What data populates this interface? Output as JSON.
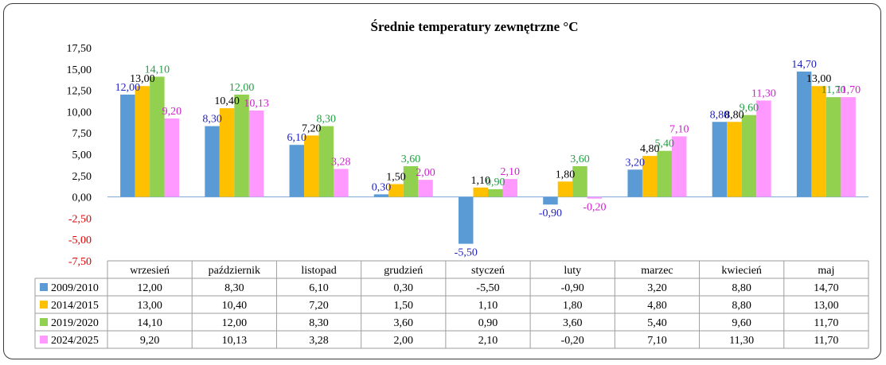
{
  "chart_data": {
    "type": "bar",
    "title": "Średnie temperatury zewnętrzne °C",
    "categories": [
      "wrzesień",
      "październik",
      "listopad",
      "grudzień",
      "styczeń",
      "luty",
      "marzec",
      "kwiecień",
      "maj"
    ],
    "ylim": [
      -7.5,
      17.5
    ],
    "yticks": [
      "17,50",
      "15,00",
      "12,50",
      "10,00",
      "7,50",
      "5,00",
      "2,50",
      "0,00",
      "-2,50",
      "-5,00",
      "-7,50"
    ],
    "ytick_values": [
      17.5,
      15,
      12.5,
      10,
      7.5,
      5,
      2.5,
      0,
      -2.5,
      -5,
      -7.5
    ],
    "grid": false,
    "legend": "data-table",
    "series": [
      {
        "name": "2009/2010",
        "color": "#5b9bd5",
        "label_color": "#1f1fbf",
        "values": [
          12.0,
          8.3,
          6.1,
          0.3,
          -5.5,
          -0.9,
          3.2,
          8.8,
          14.7
        ],
        "labels": [
          "12,00",
          "8,30",
          "6,10",
          "0,30",
          "-5,50",
          "-0,90",
          "3,20",
          "8,80",
          "14,70"
        ]
      },
      {
        "name": "2014/2015",
        "color": "#ffc000",
        "label_color": "#000000",
        "values": [
          13.0,
          10.4,
          7.2,
          1.5,
          1.1,
          1.8,
          4.8,
          8.8,
          13.0
        ],
        "labels": [
          "13,00",
          "10,40",
          "7,20",
          "1,50",
          "1,10",
          "1,80",
          "4,80",
          "8,80",
          "13,00"
        ]
      },
      {
        "name": "2019/2020",
        "color": "#92d050",
        "label_color": "#1fa040",
        "values": [
          14.1,
          12.0,
          8.3,
          3.6,
          0.9,
          3.6,
          5.4,
          9.6,
          11.7
        ],
        "labels": [
          "14,10",
          "12,00",
          "8,30",
          "3,60",
          "0,90",
          "3,60",
          "5,40",
          "9,60",
          "11,70"
        ]
      },
      {
        "name": "2024/2025",
        "color": "#ff99ff",
        "label_color": "#d020d0",
        "values": [
          9.2,
          10.13,
          3.28,
          2.0,
          2.1,
          -0.2,
          7.1,
          11.3,
          11.7
        ],
        "labels": [
          "9,20",
          "10,13",
          "3,28",
          "2,00",
          "2,10",
          "-0,20",
          "7,10",
          "11,30",
          "11,70"
        ]
      }
    ]
  }
}
